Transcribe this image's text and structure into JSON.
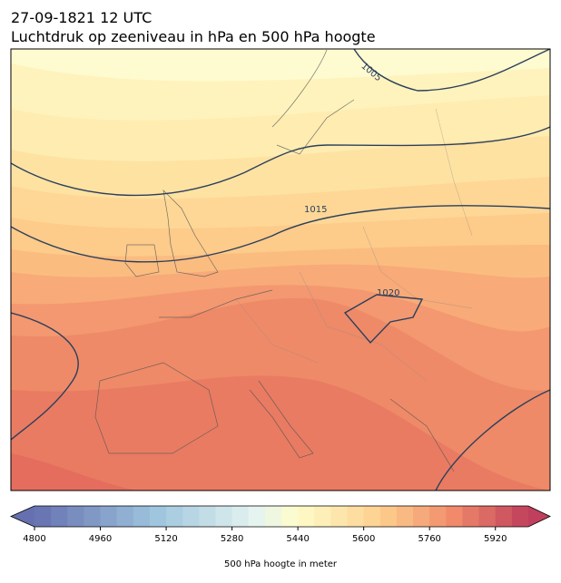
{
  "header": {
    "date": "27-09-1821 12 UTC",
    "title": "Luchtdruk op zeeniveau in hPa en 500 hPa hoogte"
  },
  "map": {
    "contour_labels": [
      "1005",
      "1015",
      "1020"
    ]
  },
  "colorbar": {
    "lim": [
      4800,
      6000
    ],
    "ticks": [
      4800,
      4960,
      5120,
      5280,
      5440,
      5600,
      5760,
      5920
    ],
    "label": "500 hPa hoogte in meter"
  }
}
